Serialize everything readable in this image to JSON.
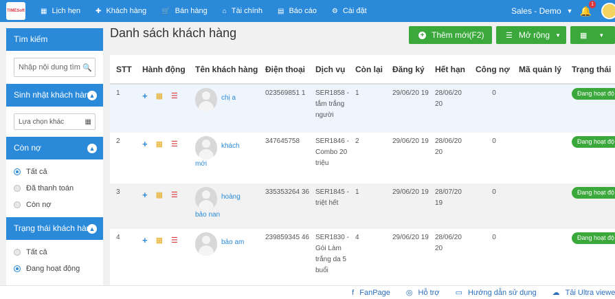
{
  "app": {
    "logo_text": "TIMESoft"
  },
  "nav": [
    {
      "label": "Lịch hẹn",
      "icon": "calendar-icon",
      "glyph": "▦"
    },
    {
      "label": "Khách hàng",
      "icon": "pin-icon",
      "glyph": "✚"
    },
    {
      "label": "Bán hàng",
      "icon": "cart-icon",
      "glyph": "🛒"
    },
    {
      "label": "Tài chính",
      "icon": "bank-icon",
      "glyph": "⌂"
    },
    {
      "label": "Báo cáo",
      "icon": "chart-icon",
      "glyph": "▤"
    },
    {
      "label": "Cài đặt",
      "icon": "gear-icon",
      "glyph": "⚙"
    }
  ],
  "user": {
    "label": "Sales - Demo",
    "notifications": "1"
  },
  "sidebar": {
    "search": {
      "title": "Tìm kiếm",
      "placeholder": "Nhập nội dung tìm"
    },
    "birthday": {
      "title": "Sinh nhật khách hàng",
      "placeholder": "Lựa chọn khác"
    },
    "debt": {
      "title": "Còn nợ",
      "options": [
        "Tất cả",
        "Đã thanh toán",
        "Còn nợ"
      ],
      "selected": 0
    },
    "status": {
      "title": "Trạng thái khách hàng",
      "options": [
        "Tất cả",
        "Đang hoạt động"
      ],
      "selected": 1
    }
  },
  "main": {
    "title": "Danh sách khách hàng",
    "add_label": "Thêm mới(F2)",
    "more_label": "Mở rộng"
  },
  "table": {
    "headers": [
      "STT",
      "Hành động",
      "Tên khách hàng",
      "Điện thoại",
      "Dịch vụ",
      "Còn lại",
      "Đăng ký",
      "Hết hạn",
      "Công nợ",
      "Mã quản lý",
      "Trạng thái"
    ],
    "rows": [
      {
        "stt": "1",
        "name_a": "chị a",
        "name_b": "",
        "phone": "023569851 1",
        "service": "SER1858 - tắm trắng người",
        "remain": "1",
        "reg": "29/06/20 19",
        "exp": "28/06/20 20",
        "debt": "0",
        "code": "",
        "status": "Đang hoạt độ"
      },
      {
        "stt": "2",
        "name_a": "khách",
        "name_b": "mới",
        "phone": "347645758",
        "service": "SER1846 - Combo 20 triệu",
        "remain": "2",
        "reg": "29/06/20 19",
        "exp": "28/06/20 20",
        "debt": "0",
        "code": "",
        "status": "Đang hoạt độ"
      },
      {
        "stt": "3",
        "name_a": "hoàng",
        "name_b": "bảo nan",
        "phone": "335353264 36",
        "service": "SER1845 - triệt hết",
        "remain": "1",
        "reg": "29/06/20 19",
        "exp": "28/07/20 19",
        "debt": "0",
        "code": "",
        "status": "Đang hoạt độ"
      },
      {
        "stt": "4",
        "name_a": "bảo am",
        "name_b": "",
        "phone": "239859345 46",
        "service": "SER1830 - Gói Làm trắng da 5 buổi",
        "remain": "4",
        "reg": "29/06/20 19",
        "exp": "28/06/20 20",
        "debt": "0",
        "code": "",
        "status": "Đang hoạt độ"
      }
    ]
  },
  "footer": [
    {
      "label": "FanPage",
      "icon": "facebook-icon",
      "glyph": "f"
    },
    {
      "label": "Hỗ trợ",
      "icon": "support-icon",
      "glyph": "◎"
    },
    {
      "label": "Hướng dẫn sử dụng",
      "icon": "book-icon",
      "glyph": "▭"
    },
    {
      "label": "Tải Ultra viewer",
      "icon": "cloud-download-icon",
      "glyph": "☁"
    }
  ]
}
